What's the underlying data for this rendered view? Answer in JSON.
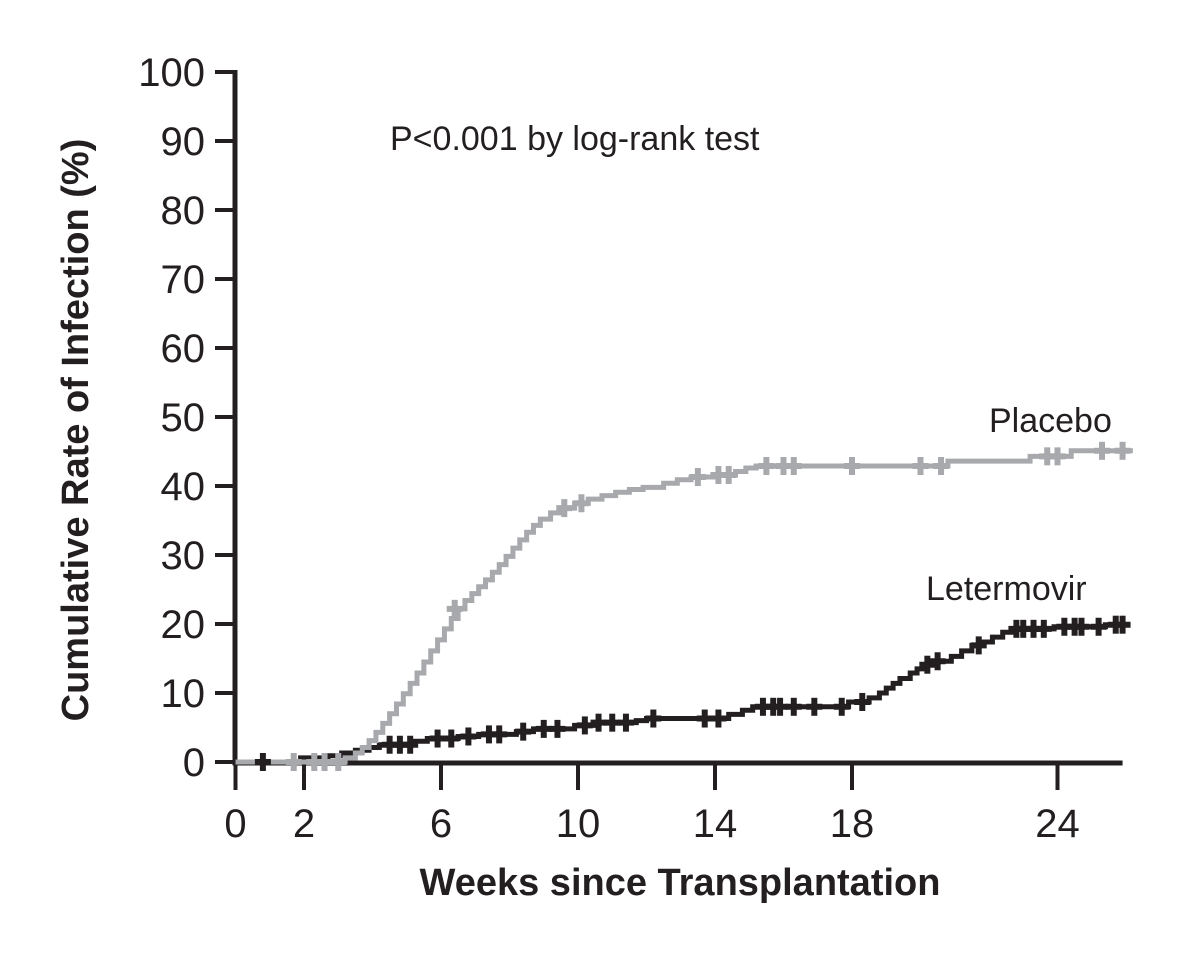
{
  "figure": {
    "background_color": "#ffffff",
    "text_color": "#231f20"
  },
  "chart_data": {
    "type": "line",
    "subtype": "kaplan-meier-step-curve",
    "title": "",
    "annotation": "P<0.001 by log-rank test",
    "xlabel": "Weeks since Transplantation",
    "ylabel": "Cumulative Rate of Infection (%)",
    "xlim": [
      0,
      26.3
    ],
    "ylim": [
      0,
      100
    ],
    "x_ticks": [
      0,
      2,
      6,
      10,
      14,
      18,
      24
    ],
    "y_ticks": [
      0,
      10,
      20,
      30,
      40,
      50,
      60,
      70,
      80,
      90,
      100
    ],
    "grid": false,
    "legend_position": "inline-labels-right",
    "axis_color": "#231f20",
    "series": [
      {
        "name": "Placebo",
        "color": "#a7a9ac",
        "end_week": 26.2,
        "final_value": 45.1,
        "steps": [
          [
            0,
            0
          ],
          [
            3.2,
            0.6
          ],
          [
            3.5,
            1.3
          ],
          [
            3.7,
            2.1
          ],
          [
            3.9,
            3.1
          ],
          [
            4.1,
            4.3
          ],
          [
            4.3,
            5.6
          ],
          [
            4.5,
            7.0
          ],
          [
            4.7,
            8.4
          ],
          [
            4.9,
            9.9
          ],
          [
            5.1,
            11.4
          ],
          [
            5.3,
            12.9
          ],
          [
            5.5,
            14.5
          ],
          [
            5.7,
            16.1
          ],
          [
            5.9,
            17.7
          ],
          [
            6.1,
            19.3
          ],
          [
            6.3,
            20.8
          ],
          [
            6.5,
            22.2
          ],
          [
            6.7,
            23.4
          ],
          [
            6.9,
            24.4
          ],
          [
            7.1,
            25.4
          ],
          [
            7.3,
            26.4
          ],
          [
            7.5,
            27.5
          ],
          [
            7.7,
            28.6
          ],
          [
            7.9,
            29.8
          ],
          [
            8.1,
            31.0
          ],
          [
            8.3,
            32.2
          ],
          [
            8.5,
            33.3
          ],
          [
            8.7,
            34.3
          ],
          [
            8.9,
            35.2
          ],
          [
            9.2,
            36.1
          ],
          [
            9.5,
            36.8
          ],
          [
            9.9,
            37.5
          ],
          [
            10.3,
            38.1
          ],
          [
            10.7,
            38.6
          ],
          [
            11.1,
            39.1
          ],
          [
            11.5,
            39.5
          ],
          [
            11.9,
            39.8
          ],
          [
            12.5,
            40.4
          ],
          [
            12.9,
            40.9
          ],
          [
            13.3,
            41.3
          ],
          [
            14.0,
            41.6
          ],
          [
            14.6,
            42.1
          ],
          [
            14.9,
            42.6
          ],
          [
            15.2,
            42.9
          ],
          [
            20.8,
            43.6
          ],
          [
            23.2,
            44.3
          ],
          [
            24.4,
            45.1
          ]
        ],
        "censor_marks": [
          [
            1.7,
            0
          ],
          [
            2.3,
            0
          ],
          [
            2.6,
            0
          ],
          [
            3.0,
            0
          ],
          [
            6.4,
            22.2
          ],
          [
            9.6,
            36.8
          ],
          [
            10.1,
            37.5
          ],
          [
            13.5,
            41.3
          ],
          [
            14.1,
            41.6
          ],
          [
            14.4,
            41.6
          ],
          [
            15.5,
            42.9
          ],
          [
            16.0,
            42.9
          ],
          [
            16.3,
            42.9
          ],
          [
            18.0,
            42.9
          ],
          [
            20.0,
            42.9
          ],
          [
            20.6,
            42.9
          ],
          [
            23.7,
            44.3
          ],
          [
            24.0,
            44.3
          ],
          [
            25.3,
            45.1
          ],
          [
            25.9,
            45.1
          ]
        ]
      },
      {
        "name": "Letermovir",
        "color": "#231f20",
        "end_week": 26.1,
        "final_value": 19.9,
        "steps": [
          [
            0,
            0
          ],
          [
            1.9,
            0.6
          ],
          [
            2.7,
            0.9
          ],
          [
            3.1,
            1.3
          ],
          [
            3.5,
            1.7
          ],
          [
            3.9,
            2.1
          ],
          [
            4.2,
            2.5
          ],
          [
            5.2,
            3.0
          ],
          [
            5.6,
            3.4
          ],
          [
            6.5,
            3.7
          ],
          [
            7.1,
            4.0
          ],
          [
            8.2,
            4.4
          ],
          [
            8.7,
            4.8
          ],
          [
            9.9,
            5.3
          ],
          [
            10.5,
            5.7
          ],
          [
            11.7,
            6.0
          ],
          [
            12.0,
            6.3
          ],
          [
            14.4,
            6.9
          ],
          [
            14.8,
            7.5
          ],
          [
            15.1,
            8.0
          ],
          [
            17.9,
            8.7
          ],
          [
            18.5,
            9.3
          ],
          [
            18.8,
            10.0
          ],
          [
            19.0,
            10.7
          ],
          [
            19.2,
            11.4
          ],
          [
            19.4,
            12.1
          ],
          [
            19.7,
            12.9
          ],
          [
            19.9,
            13.5
          ],
          [
            20.1,
            14.1
          ],
          [
            20.4,
            14.6
          ],
          [
            20.9,
            15.3
          ],
          [
            21.2,
            16.1
          ],
          [
            21.5,
            16.9
          ],
          [
            21.8,
            17.4
          ],
          [
            22.1,
            18.1
          ],
          [
            22.4,
            18.8
          ],
          [
            22.7,
            19.3
          ],
          [
            23.9,
            19.6
          ],
          [
            25.4,
            19.9
          ]
        ],
        "censor_marks": [
          [
            0.8,
            0
          ],
          [
            4.5,
            2.5
          ],
          [
            4.8,
            2.5
          ],
          [
            5.1,
            2.5
          ],
          [
            5.9,
            3.4
          ],
          [
            6.3,
            3.4
          ],
          [
            6.8,
            3.7
          ],
          [
            7.4,
            4.0
          ],
          [
            7.7,
            4.0
          ],
          [
            8.4,
            4.4
          ],
          [
            9.0,
            4.8
          ],
          [
            9.4,
            4.8
          ],
          [
            10.2,
            5.3
          ],
          [
            10.6,
            5.7
          ],
          [
            11.0,
            5.7
          ],
          [
            11.4,
            5.7
          ],
          [
            12.2,
            6.3
          ],
          [
            13.7,
            6.3
          ],
          [
            14.1,
            6.3
          ],
          [
            15.4,
            8.0
          ],
          [
            15.7,
            8.0
          ],
          [
            15.9,
            8.0
          ],
          [
            16.3,
            8.0
          ],
          [
            16.9,
            8.0
          ],
          [
            17.7,
            8.0
          ],
          [
            18.3,
            8.7
          ],
          [
            20.2,
            14.1
          ],
          [
            20.5,
            14.6
          ],
          [
            21.7,
            16.9
          ],
          [
            22.8,
            19.3
          ],
          [
            23.0,
            19.3
          ],
          [
            23.3,
            19.3
          ],
          [
            23.6,
            19.3
          ],
          [
            24.2,
            19.6
          ],
          [
            24.5,
            19.6
          ],
          [
            24.7,
            19.6
          ],
          [
            25.2,
            19.6
          ],
          [
            25.7,
            19.9
          ],
          [
            25.9,
            19.9
          ]
        ]
      }
    ]
  }
}
